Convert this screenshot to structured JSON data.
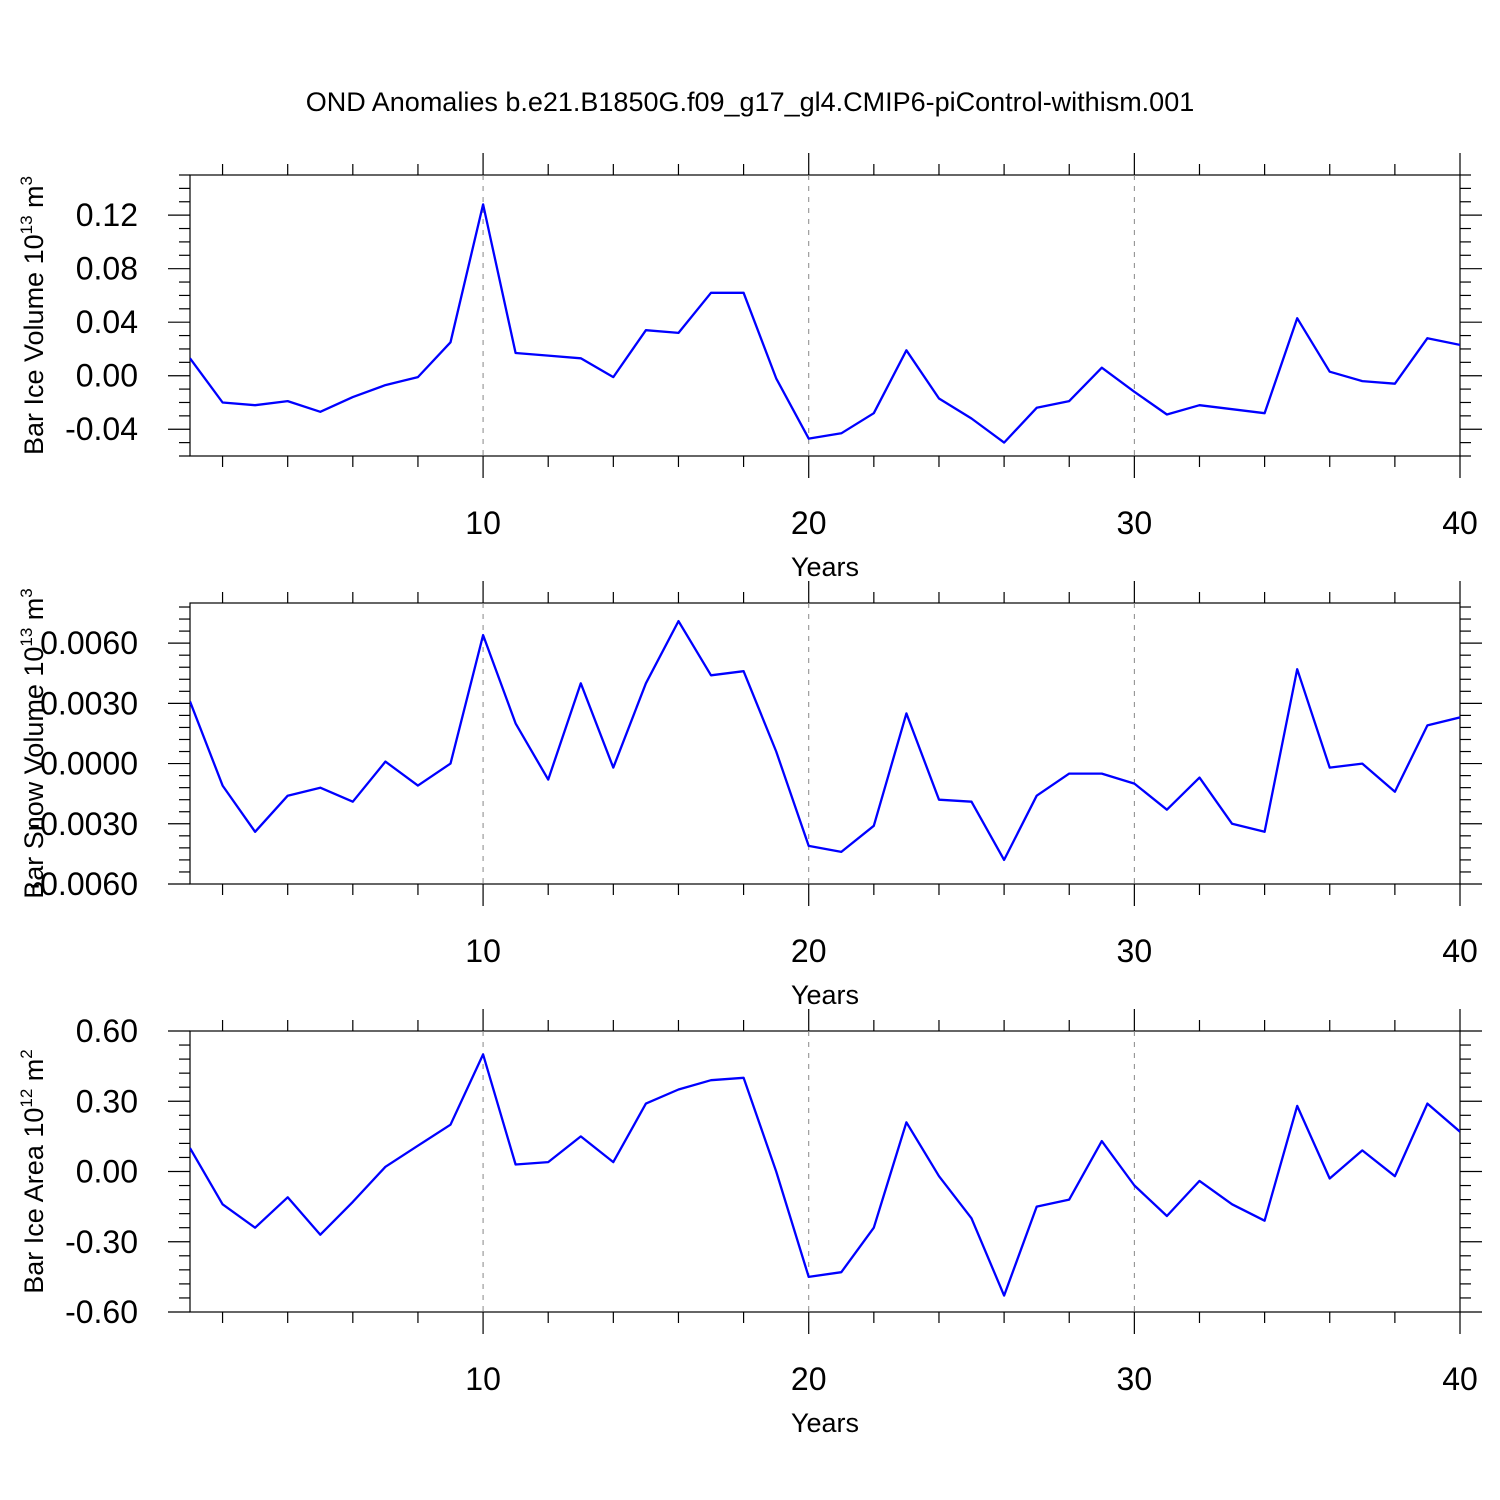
{
  "figure_title": "OND Anomalies b.e21.B1850G.f09_g17_gl4.CMIP6-piControl-withism.001",
  "colors": {
    "line": "#0000ff",
    "grid": "#888888"
  },
  "chart_data": [
    {
      "type": "line",
      "title": "",
      "xlabel": "Years",
      "ylabel_main": "Bar Ice Volume 10",
      "ylabel_exp": "13",
      "ylabel_unit": " m",
      "ylabel_unit_exp": "3",
      "xlim": [
        1,
        40
      ],
      "ylim": [
        -0.06,
        0.15
      ],
      "x_ticks": [
        "10",
        "20",
        "30",
        "40"
      ],
      "y_ticks": [
        "0.12",
        "0.08",
        "0.04",
        "0.00",
        "-0.04"
      ],
      "y_tick_values": [
        0.12,
        0.08,
        0.04,
        0.0,
        -0.04
      ],
      "grid": "vertical dashed at x = 10, 20, 30",
      "series": [
        {
          "x": [
            1,
            2,
            3,
            4,
            5,
            6,
            7,
            8,
            9,
            10,
            11,
            12,
            13,
            14,
            15,
            16,
            17,
            18,
            19,
            20,
            21,
            22,
            23,
            24,
            25,
            26,
            27,
            28,
            29,
            30,
            31,
            32,
            33,
            34,
            35,
            36,
            37,
            38,
            39,
            40
          ],
          "values": [
            0.013,
            -0.02,
            -0.022,
            -0.019,
            -0.027,
            -0.016,
            -0.007,
            -0.001,
            0.025,
            0.128,
            0.017,
            0.015,
            0.013,
            -0.001,
            0.034,
            0.032,
            0.062,
            0.062,
            -0.002,
            -0.047,
            -0.043,
            -0.028,
            0.019,
            -0.017,
            -0.032,
            -0.05,
            -0.024,
            -0.019,
            0.006,
            -0.012,
            -0.029,
            -0.022,
            -0.025,
            -0.028,
            0.043,
            0.003,
            -0.004,
            -0.006,
            0.028,
            0.023
          ]
        }
      ]
    },
    {
      "type": "line",
      "title": "",
      "xlabel": "Years",
      "ylabel_main": "Bar Snow Volume 10",
      "ylabel_exp": "13",
      "ylabel_unit": " m",
      "ylabel_unit_exp": "3",
      "xlim": [
        1,
        40
      ],
      "ylim": [
        -0.006,
        0.008
      ],
      "x_ticks": [
        "10",
        "20",
        "30",
        "40"
      ],
      "y_ticks": [
        "0.0060",
        "0.0030",
        "0.0000",
        "-0.0030",
        "-0.0060"
      ],
      "y_tick_values": [
        0.006,
        0.003,
        0.0,
        -0.003,
        -0.006
      ],
      "grid": "vertical dashed at x = 10, 20, 30",
      "series": [
        {
          "x": [
            1,
            2,
            3,
            4,
            5,
            6,
            7,
            8,
            9,
            10,
            11,
            12,
            13,
            14,
            15,
            16,
            17,
            18,
            19,
            20,
            21,
            22,
            23,
            24,
            25,
            26,
            27,
            28,
            29,
            30,
            31,
            32,
            33,
            34,
            35,
            36,
            37,
            38,
            39,
            40
          ],
          "values": [
            0.0031,
            -0.0011,
            -0.0034,
            -0.0016,
            -0.0012,
            -0.0019,
            0.0001,
            -0.0011,
            0.0,
            0.0064,
            0.002,
            -0.0008,
            0.004,
            -0.0002,
            0.004,
            0.0071,
            0.0044,
            0.0046,
            0.0006,
            -0.0041,
            -0.0044,
            -0.0031,
            0.0025,
            -0.0018,
            -0.0019,
            -0.0048,
            -0.0016,
            -0.0005,
            -0.0005,
            -0.001,
            -0.0023,
            -0.0007,
            -0.003,
            -0.0034,
            0.0047,
            -0.0002,
            0.0,
            -0.0014,
            0.0019,
            0.0023
          ]
        }
      ]
    },
    {
      "type": "line",
      "title": "",
      "xlabel": "Years",
      "ylabel_main": "Bar Ice Area 10",
      "ylabel_exp": "12",
      "ylabel_unit": " m",
      "ylabel_unit_exp": "2",
      "xlim": [
        1,
        40
      ],
      "ylim": [
        -0.6,
        0.6
      ],
      "x_ticks": [
        "10",
        "20",
        "30",
        "40"
      ],
      "y_ticks": [
        "0.60",
        "0.30",
        "0.00",
        "-0.30",
        "-0.60"
      ],
      "y_tick_values": [
        0.6,
        0.3,
        0.0,
        -0.3,
        -0.6
      ],
      "grid": "vertical dashed at x = 10, 20, 30",
      "series": [
        {
          "x": [
            1,
            2,
            3,
            4,
            5,
            6,
            7,
            8,
            9,
            10,
            11,
            12,
            13,
            14,
            15,
            16,
            17,
            18,
            19,
            20,
            21,
            22,
            23,
            24,
            25,
            26,
            27,
            28,
            29,
            30,
            31,
            32,
            33,
            34,
            35,
            36,
            37,
            38,
            39,
            40
          ],
          "values": [
            0.1,
            -0.14,
            -0.24,
            -0.11,
            -0.27,
            -0.13,
            0.02,
            0.11,
            0.2,
            0.5,
            0.03,
            0.04,
            0.15,
            0.04,
            0.29,
            0.35,
            0.39,
            0.4,
            0.0,
            -0.45,
            -0.43,
            -0.24,
            0.21,
            -0.02,
            -0.2,
            -0.53,
            -0.15,
            -0.12,
            0.13,
            -0.06,
            -0.19,
            -0.04,
            -0.14,
            -0.21,
            0.28,
            -0.03,
            0.09,
            -0.02,
            0.29,
            0.17
          ]
        }
      ]
    }
  ]
}
